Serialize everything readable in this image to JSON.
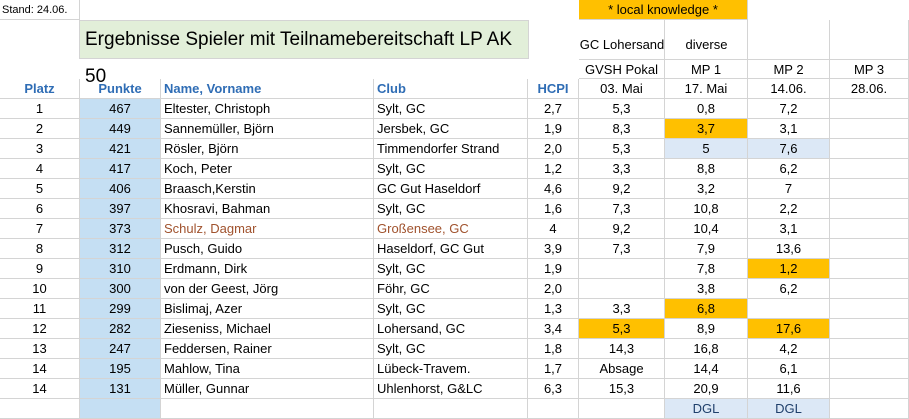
{
  "stand": "Stand: 24.06.",
  "title": "Ergebnisse Spieler mit Teilnamebereitschaft LP AK 50",
  "local_knowledge": "* local knowledge *",
  "gc_lohersand": "GC Lohersand",
  "diverse": "diverse",
  "group_headers": [
    "GVSH Pokal",
    "MP 1",
    "MP 2",
    "MP 3"
  ],
  "dates": [
    "03. Mai",
    "17. Mai",
    "14.06.",
    "28.06."
  ],
  "col_headers": {
    "platz": "Platz",
    "punkte": "Punkte",
    "name": "Name, Vorname",
    "club": "Club",
    "hcpi": "HCPI"
  },
  "rows": [
    {
      "platz": "1",
      "punkte": "467",
      "name": "Eltester, Christoph",
      "club": "Sylt, GC",
      "hcpi": "2,7",
      "pokal": "5,3",
      "mp1": "0,8",
      "mp2": "7,2",
      "mp3": ""
    },
    {
      "platz": "2",
      "punkte": "449",
      "name": "Sannemüller, Björn",
      "club": "Jersbek, GC",
      "hcpi": "1,9",
      "pokal": "8,3",
      "mp1": "3,7",
      "mp2": "3,1",
      "mp3": ""
    },
    {
      "platz": "3",
      "punkte": "421",
      "name": "Rösler, Björn",
      "club": "Timmendorfer Strand",
      "hcpi": "2,0",
      "pokal": "5,3",
      "mp1": "5",
      "mp2": "7,6",
      "mp3": ""
    },
    {
      "platz": "4",
      "punkte": "417",
      "name": "Koch, Peter",
      "club": "Sylt, GC",
      "hcpi": "1,2",
      "pokal": "3,3",
      "mp1": "8,8",
      "mp2": "6,2",
      "mp3": ""
    },
    {
      "platz": "5",
      "punkte": "406",
      "name": "Braasch,Kerstin",
      "club": "GC Gut Haseldorf",
      "hcpi": "4,6",
      "pokal": "9,2",
      "mp1": "3,2",
      "mp2": "7",
      "mp3": ""
    },
    {
      "platz": "6",
      "punkte": "397",
      "name": "Khosravi, Bahman",
      "club": "Sylt, GC",
      "hcpi": "1,6",
      "pokal": "7,3",
      "mp1": "10,8",
      "mp2": "2,2",
      "mp3": ""
    },
    {
      "platz": "7",
      "punkte": "373",
      "name": "Schulz, Dagmar",
      "club": "Großensee, GC",
      "hcpi": "4",
      "pokal": "9,2",
      "mp1": "10,4",
      "mp2": "3,1",
      "mp3": ""
    },
    {
      "platz": "8",
      "punkte": "312",
      "name": "Pusch, Guido",
      "club": "Haseldorf, GC Gut",
      "hcpi": "3,9",
      "pokal": "7,3",
      "mp1": "7,9",
      "mp2": "13,6",
      "mp3": ""
    },
    {
      "platz": "9",
      "punkte": "310",
      "name": "Erdmann, Dirk",
      "club": "Sylt, GC",
      "hcpi": "1,9",
      "pokal": "",
      "mp1": "7,8",
      "mp2": "1,2",
      "mp3": ""
    },
    {
      "platz": "10",
      "punkte": "300",
      "name": "von der Geest, Jörg",
      "club": "Föhr, GC",
      "hcpi": "2,0",
      "pokal": "",
      "mp1": "3,8",
      "mp2": "6,2",
      "mp3": ""
    },
    {
      "platz": "11",
      "punkte": "299",
      "name": "Bislimaj, Azer",
      "club": "Sylt, GC",
      "hcpi": "1,3",
      "pokal": "3,3",
      "mp1": "6,8",
      "mp2": "",
      "mp3": ""
    },
    {
      "platz": "12",
      "punkte": "282",
      "name": "Zieseniss, Michael",
      "club": "Lohersand, GC",
      "hcpi": "3,4",
      "pokal": "5,3",
      "mp1": "8,9",
      "mp2": "17,6",
      "mp3": ""
    },
    {
      "platz": "13",
      "punkte": "247",
      "name": "Feddersen, Rainer",
      "club": "Sylt, GC",
      "hcpi": "1,8",
      "pokal": "14,3",
      "mp1": "16,8",
      "mp2": "4,2",
      "mp3": ""
    },
    {
      "platz": "14",
      "punkte": "195",
      "name": "Mahlow, Tina",
      "club": "Lübeck-Travem.",
      "hcpi": "1,7",
      "pokal": "Absage",
      "mp1": "14,4",
      "mp2": "6,1",
      "mp3": ""
    },
    {
      "platz": "14",
      "punkte": "131",
      "name": "Müller, Gunnar",
      "club": "Uhlenhorst, G&LC",
      "hcpi": "6,3",
      "pokal": "15,3",
      "mp1": "20,9",
      "mp2": "11,6",
      "mp3": ""
    }
  ],
  "footer": {
    "mp1": "DGL",
    "mp2": "DGL"
  },
  "colors": {
    "header_text": "#2f6db5",
    "points_fill": "#c5dff3",
    "highlight": "#ffc000",
    "light_blue": "#dce8f6",
    "title_fill": "#e2efd9",
    "brown_text": "#a0522d"
  }
}
